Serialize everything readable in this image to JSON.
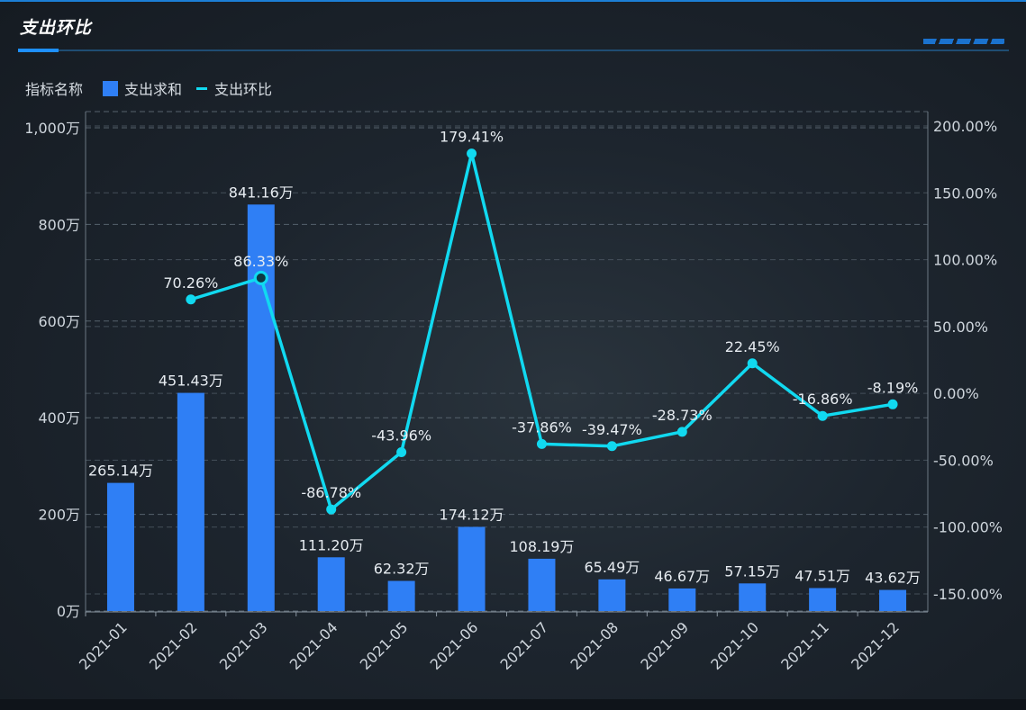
{
  "panel": {
    "title": "支出环比"
  },
  "legend": {
    "title": "指标名称",
    "bar_label": "支出求和",
    "line_label": "支出环比"
  },
  "colors": {
    "bar": "#2f7ff5",
    "line": "#11d9f0",
    "text": "#e6ebf0",
    "axis": "#cfd6dd",
    "grid": "#56626d",
    "accent": "#1e90ff"
  },
  "chart_data": {
    "type": "bar",
    "categories": [
      "2021-01",
      "2021-02",
      "2021-03",
      "2021-04",
      "2021-05",
      "2021-06",
      "2021-07",
      "2021-08",
      "2021-09",
      "2021-10",
      "2021-11",
      "2021-12"
    ],
    "series": [
      {
        "name": "支出求和",
        "type": "bar",
        "axis": "left",
        "values": [
          265.14,
          451.43,
          841.16,
          111.2,
          62.32,
          174.12,
          108.19,
          65.49,
          46.67,
          57.15,
          47.51,
          43.62
        ],
        "labels": [
          "265.14万",
          "451.43万",
          "841.16万",
          "111.20万",
          "62.32万",
          "174.12万",
          "108.19万",
          "65.49万",
          "46.67万",
          "57.15万",
          "47.51万",
          "43.62万"
        ]
      },
      {
        "name": "支出环比",
        "type": "line",
        "axis": "right",
        "values": [
          null,
          70.26,
          86.33,
          -86.78,
          -43.96,
          179.41,
          -37.86,
          -39.47,
          -28.73,
          22.45,
          -16.86,
          -8.19
        ],
        "labels": [
          "",
          "70.26%",
          "86.33%",
          "-86.78%",
          "-43.96%",
          "179.41%",
          "-37.86%",
          "-39.47%",
          "-28.73%",
          "22.45%",
          "-16.86%",
          "-8.19%"
        ]
      }
    ],
    "y_left": {
      "ticks": [
        0,
        200,
        400,
        600,
        800,
        1000
      ],
      "tick_labels": [
        "0万",
        "200万",
        "400万",
        "600万",
        "800万",
        "1,000万"
      ],
      "ylim": [
        0,
        1000
      ]
    },
    "y_right": {
      "ticks": [
        -150,
        -100,
        -50,
        0,
        50,
        100,
        150,
        200
      ],
      "tick_labels": [
        "-150.00%",
        "-100.00%",
        "-50.00%",
        "0.00%",
        "50.00%",
        "100.00%",
        "150.00%",
        "200.00%"
      ],
      "ylim": [
        -150,
        200
      ]
    },
    "grid": true,
    "legend_position": "top-left"
  }
}
